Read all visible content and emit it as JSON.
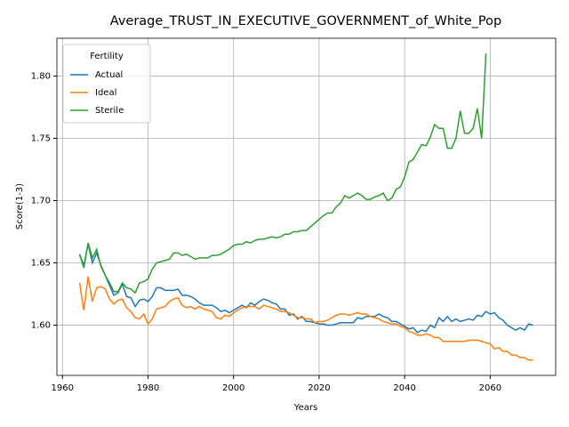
{
  "chart_data": {
    "type": "line",
    "title": "Average_TRUST_IN_EXECUTIVE_GOVERNMENT_of_White_Pop",
    "x_label": "Years",
    "y_label": "Score(1-3)",
    "legend_title": "Fertility",
    "legend_position": "upper left",
    "grid": true,
    "xlim": [
      1958.7,
      2075.3
    ],
    "xticks": [
      1960,
      1980,
      2000,
      2020,
      2040,
      2060
    ],
    "ylim": [
      1.5597,
      1.8303
    ],
    "yticks": [
      {
        "value": 1.6,
        "label": "1.60"
      },
      {
        "value": 1.65,
        "label": "1.65"
      },
      {
        "value": 1.7,
        "label": "1.70"
      },
      {
        "value": 1.75,
        "label": "1.75"
      },
      {
        "value": 1.8,
        "label": "1.80"
      }
    ],
    "x": [
      1964,
      1965,
      1966,
      1967,
      1968,
      1969,
      1970,
      1971,
      1972,
      1973,
      1974,
      1975,
      1976,
      1977,
      1978,
      1979,
      1980,
      1981,
      1982,
      1983,
      1984,
      1985,
      1986,
      1987,
      1988,
      1989,
      1990,
      1991,
      1992,
      1993,
      1994,
      1995,
      1996,
      1997,
      1998,
      1999,
      2000,
      2001,
      2002,
      2003,
      2004,
      2005,
      2006,
      2007,
      2008,
      2009,
      2010,
      2011,
      2012,
      2013,
      2014,
      2015,
      2016,
      2017,
      2018,
      2019,
      2020,
      2021,
      2022,
      2023,
      2024,
      2025,
      2026,
      2027,
      2028,
      2029,
      2030,
      2031,
      2032,
      2033,
      2034,
      2035,
      2036,
      2037,
      2038,
      2039,
      2040,
      2041,
      2042,
      2043,
      2044,
      2045,
      2046,
      2047,
      2048,
      2049,
      2050,
      2051,
      2052,
      2053,
      2054,
      2055,
      2056,
      2057,
      2058,
      2059,
      2060,
      2061,
      2062,
      2063,
      2064,
      2065,
      2066,
      2067,
      2068,
      2069,
      2070
    ],
    "series": [
      {
        "name": "Actual",
        "color": "#1f77b4",
        "values": [
          1.657,
          1.648,
          1.665,
          1.65,
          1.658,
          1.648,
          1.64,
          1.632,
          1.624,
          1.626,
          1.633,
          1.623,
          1.622,
          1.615,
          1.62,
          1.621,
          1.619,
          1.623,
          1.63,
          1.63,
          1.628,
          1.628,
          1.628,
          1.629,
          1.624,
          1.624,
          1.623,
          1.621,
          1.618,
          1.616,
          1.616,
          1.616,
          1.614,
          1.611,
          1.612,
          1.61,
          1.612,
          1.614,
          1.616,
          1.614,
          1.618,
          1.616,
          1.619,
          1.621,
          1.62,
          1.618,
          1.617,
          1.613,
          1.613,
          1.608,
          1.609,
          1.605,
          1.607,
          1.603,
          1.603,
          1.602,
          1.601,
          1.601,
          1.6,
          1.6,
          1.601,
          1.602,
          1.602,
          1.602,
          1.602,
          1.606,
          1.605,
          1.607,
          1.607,
          1.607,
          1.609,
          1.607,
          1.606,
          1.603,
          1.603,
          1.601,
          1.599,
          1.597,
          1.598,
          1.594,
          1.596,
          1.595,
          1.6,
          1.598,
          1.606,
          1.603,
          1.607,
          1.603,
          1.605,
          1.603,
          1.604,
          1.605,
          1.604,
          1.608,
          1.607,
          1.611,
          1.609,
          1.61,
          1.606,
          1.604,
          1.6,
          1.598,
          1.596,
          1.598,
          1.596,
          1.601,
          1.6
        ]
      },
      {
        "name": "Ideal",
        "color": "#ff7f0e",
        "values": [
          1.634,
          1.612,
          1.639,
          1.619,
          1.63,
          1.631,
          1.629,
          1.621,
          1.617,
          1.62,
          1.621,
          1.614,
          1.611,
          1.606,
          1.605,
          1.609,
          1.601,
          1.605,
          1.613,
          1.614,
          1.615,
          1.619,
          1.621,
          1.622,
          1.616,
          1.614,
          1.615,
          1.613,
          1.615,
          1.613,
          1.612,
          1.611,
          1.606,
          1.605,
          1.608,
          1.607,
          1.61,
          1.612,
          1.614,
          1.615,
          1.615,
          1.615,
          1.613,
          1.616,
          1.615,
          1.614,
          1.613,
          1.611,
          1.611,
          1.61,
          1.608,
          1.606,
          1.606,
          1.605,
          1.605,
          1.602,
          1.603,
          1.603,
          1.604,
          1.606,
          1.608,
          1.609,
          1.609,
          1.608,
          1.609,
          1.61,
          1.609,
          1.609,
          1.607,
          1.606,
          1.605,
          1.603,
          1.602,
          1.601,
          1.601,
          1.599,
          1.598,
          1.595,
          1.594,
          1.592,
          1.592,
          1.593,
          1.592,
          1.59,
          1.59,
          1.587,
          1.587,
          1.587,
          1.587,
          1.587,
          1.587,
          1.588,
          1.588,
          1.588,
          1.587,
          1.586,
          1.585,
          1.581,
          1.582,
          1.579,
          1.579,
          1.576,
          1.576,
          1.574,
          1.574,
          1.572,
          1.572
        ]
      },
      {
        "name": "Sterile",
        "color": "#2ca02c",
        "values": [
          1.657,
          1.646,
          1.666,
          1.654,
          1.661,
          1.647,
          1.64,
          1.634,
          1.627,
          1.627,
          1.634,
          1.63,
          1.629,
          1.626,
          1.634,
          1.635,
          1.637,
          1.645,
          1.65,
          1.651,
          1.652,
          1.653,
          1.658,
          1.658,
          1.656,
          1.657,
          1.655,
          1.653,
          1.654,
          1.654,
          1.654,
          1.656,
          1.656,
          1.657,
          1.659,
          1.661,
          1.664,
          1.665,
          1.665,
          1.667,
          1.666,
          1.668,
          1.669,
          1.669,
          1.67,
          1.671,
          1.67,
          1.671,
          1.673,
          1.673,
          1.675,
          1.675,
          1.676,
          1.676,
          1.679,
          1.682,
          1.685,
          1.688,
          1.69,
          1.69,
          1.695,
          1.698,
          1.704,
          1.702,
          1.704,
          1.706,
          1.704,
          1.701,
          1.701,
          1.703,
          1.704,
          1.706,
          1.7,
          1.702,
          1.709,
          1.711,
          1.719,
          1.731,
          1.733,
          1.739,
          1.745,
          1.744,
          1.751,
          1.761,
          1.758,
          1.758,
          1.742,
          1.742,
          1.75,
          1.772,
          1.754,
          1.754,
          1.758,
          1.774,
          1.75,
          1.818,
          null,
          null,
          null,
          null,
          null,
          null,
          null,
          null,
          null,
          null,
          null
        ]
      }
    ]
  }
}
